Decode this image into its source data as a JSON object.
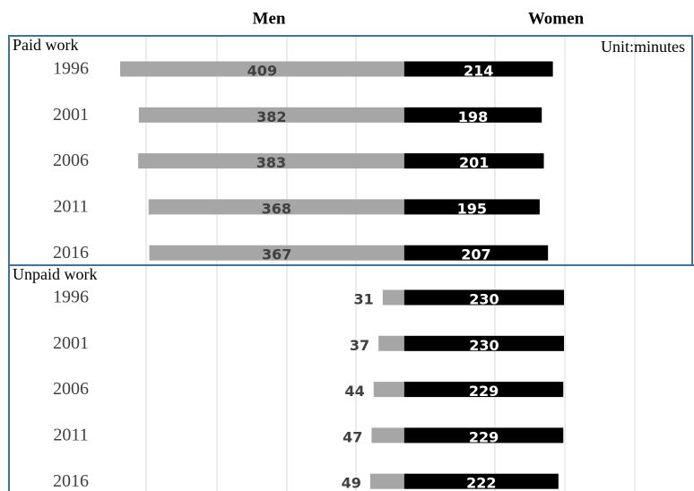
{
  "chart_data": {
    "type": "butterfly",
    "series": [
      {
        "name": "Men",
        "color": "#a6a6a6",
        "label_color": "#404040"
      },
      {
        "name": "Women",
        "color": "#000000",
        "label_color": "#ffffff"
      }
    ],
    "unit": "Unit:minutes",
    "xlim": [
      -569,
      412
    ],
    "panels": [
      {
        "name": "Paid work",
        "categories": [
          "1996",
          "2001",
          "2006",
          "2011",
          "2016"
        ],
        "values": [
          [
            409,
            382,
            383,
            368,
            367
          ],
          [
            214,
            198,
            201,
            195,
            207
          ]
        ]
      },
      {
        "name": "Unpaid work",
        "categories": [
          "1996",
          "2001",
          "2006",
          "2011",
          "2016"
        ],
        "values": [
          [
            31,
            37,
            44,
            47,
            49
          ],
          [
            230,
            230,
            229,
            229,
            222
          ]
        ]
      }
    ]
  }
}
